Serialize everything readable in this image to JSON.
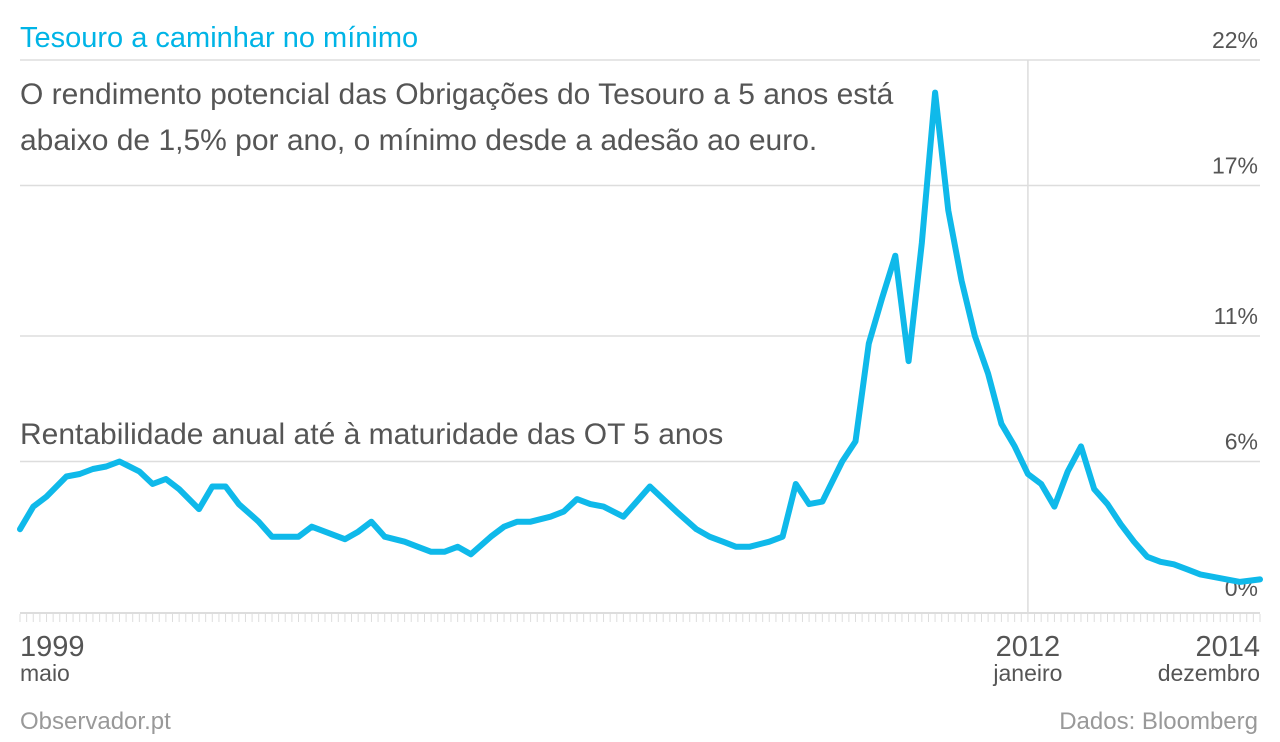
{
  "title": "Tesouro a caminhar no mínimo",
  "subtitle": "O rendimento potencial das Obrigações do Tesouro a 5 anos está abaixo de 1,5% por ano, o mínimo desde a adesão ao euro.",
  "footer": {
    "source_left": "Observador.pt",
    "source_right": "Dados: Bloomberg"
  },
  "colors": {
    "accent": "#00b4e6",
    "line": "#0fb9ea",
    "grid": "#dddddd",
    "text": "#555555",
    "footer": "#999999"
  },
  "chart_data": {
    "type": "line",
    "title": "Tesouro a caminhar no mínimo",
    "series": [
      {
        "name": "Rentabilidade anual até à maturidade das OT 5 anos",
        "x": [
          "1999-05",
          "1999-07",
          "1999-09",
          "1999-12",
          "2000-02",
          "2000-04",
          "2000-06",
          "2000-08",
          "2000-11",
          "2001-01",
          "2001-03",
          "2001-05",
          "2001-08",
          "2001-10",
          "2001-12",
          "2002-02",
          "2002-05",
          "2002-07",
          "2002-09",
          "2002-11",
          "2003-01",
          "2003-04",
          "2003-06",
          "2003-08",
          "2003-10",
          "2003-12",
          "2004-03",
          "2004-05",
          "2004-07",
          "2004-09",
          "2004-11",
          "2005-01",
          "2005-04",
          "2005-06",
          "2005-08",
          "2005-10",
          "2006-01",
          "2006-03",
          "2006-05",
          "2006-07",
          "2006-09",
          "2006-12",
          "2007-02",
          "2007-04",
          "2007-06",
          "2007-08",
          "2007-11",
          "2008-01",
          "2008-03",
          "2008-05",
          "2008-07",
          "2008-10",
          "2008-12",
          "2009-02",
          "2009-04",
          "2009-06",
          "2009-09",
          "2009-11",
          "2010-01",
          "2010-03",
          "2010-05",
          "2010-07",
          "2010-09",
          "2010-11",
          "2011-01",
          "2011-03",
          "2011-05",
          "2011-07",
          "2011-09",
          "2011-11",
          "2012-01",
          "2012-03",
          "2012-05",
          "2012-07",
          "2012-09",
          "2012-11",
          "2013-01",
          "2013-03",
          "2013-05",
          "2013-07",
          "2013-09",
          "2013-11",
          "2014-01",
          "2014-03",
          "2014-05",
          "2014-07",
          "2014-09",
          "2014-12"
        ],
        "values": [
          3.3,
          4.2,
          4.6,
          5.4,
          5.5,
          5.7,
          5.8,
          6.0,
          5.6,
          5.1,
          5.3,
          4.9,
          4.1,
          5.0,
          5.0,
          4.3,
          3.6,
          3.0,
          3.0,
          3.0,
          3.4,
          3.1,
          2.9,
          3.2,
          3.6,
          3.0,
          2.8,
          2.6,
          2.4,
          2.4,
          2.6,
          2.3,
          3.0,
          3.4,
          3.6,
          3.6,
          3.8,
          4.0,
          4.5,
          4.3,
          4.2,
          3.8,
          4.4,
          5.0,
          4.5,
          4.0,
          3.3,
          3.0,
          2.8,
          2.6,
          2.6,
          2.8,
          3.0,
          5.1,
          4.3,
          4.4,
          6.0,
          6.8,
          10.7,
          12.5,
          14.2,
          10.0,
          14.7,
          20.7,
          16.0,
          13.2,
          11.0,
          9.5,
          7.5,
          6.6,
          5.5,
          5.1,
          4.2,
          5.6,
          6.6,
          4.9,
          4.3,
          3.5,
          2.8,
          2.2,
          2.0,
          1.9,
          1.7,
          1.5,
          1.4,
          1.3,
          1.2,
          1.3
        ]
      }
    ],
    "y_ticks": [
      "22%",
      "17%",
      "11%",
      "6%",
      "0%"
    ],
    "ylim": [
      0,
      22
    ],
    "x_labels": [
      {
        "year": "1999",
        "month": "maio"
      },
      {
        "year": "2012",
        "month": "janeiro"
      },
      {
        "year": "2014",
        "month": "dezembro"
      }
    ],
    "grid": true,
    "legend": "none"
  }
}
